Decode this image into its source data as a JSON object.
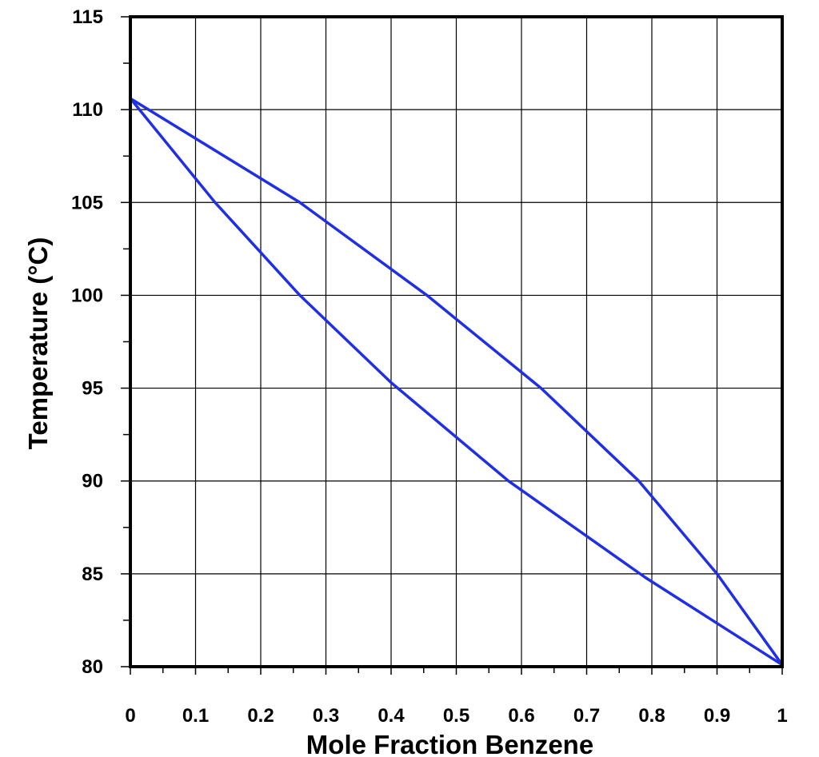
{
  "chart_data": {
    "type": "line",
    "title": "",
    "xlabel": "Mole Fraction Benzene",
    "ylabel": "Temperature (°C)",
    "xlim": [
      0,
      1
    ],
    "ylim": [
      80,
      115
    ],
    "x_ticks": [
      "0",
      "0.1",
      "0.2",
      "0.3",
      "0.4",
      "0.5",
      "0.6",
      "0.7",
      "0.8",
      "0.9",
      "1"
    ],
    "y_ticks": [
      "80",
      "85",
      "90",
      "95",
      "100",
      "105",
      "110",
      "115"
    ],
    "grid": true,
    "line_color": "#1f2ee8",
    "series": [
      {
        "x": [
          0,
          0.26,
          0.455,
          0.63,
          0.78,
          0.9,
          1
        ],
        "y": [
          110.6,
          105,
          100,
          95,
          90,
          85,
          80.1
        ]
      },
      {
        "x": [
          0,
          0.13,
          0.26,
          0.4,
          0.58,
          0.79,
          1
        ],
        "y": [
          110.6,
          105,
          100,
          95.3,
          90,
          84.8,
          80.1
        ]
      }
    ]
  }
}
